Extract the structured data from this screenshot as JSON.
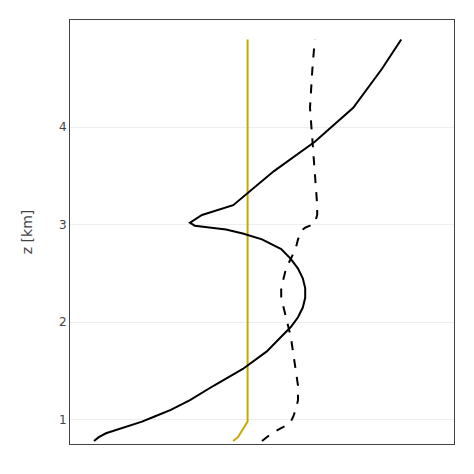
{
  "chart_data": {
    "type": "line",
    "ylabel": "z [km]",
    "xlim": [
      -0.3,
      1.3
    ],
    "ylim": [
      0.75,
      5.1
    ],
    "xticks": [],
    "yticks": [
      1,
      2,
      3,
      4
    ],
    "grid": true,
    "tick_labels": "y",
    "series": [
      {
        "color": "#c8a800",
        "line_style": "solid",
        "x": [
          0.38,
          0.4,
          0.41,
          0.42,
          0.43,
          0.44,
          0.44,
          0.44,
          0.44,
          0.44,
          0.44,
          0.44,
          0.44,
          0.44,
          0.44,
          0.44,
          0.44,
          0.44,
          0.44,
          0.44,
          0.44,
          0.44,
          0.44,
          0.44,
          0.44,
          0.44,
          0.44,
          0.44,
          0.44,
          0.44,
          0.44,
          0.44,
          0.44,
          0.44,
          0.44
        ],
        "values": [
          0.78,
          0.82,
          0.86,
          0.9,
          0.94,
          0.98,
          1.03,
          1.1,
          1.2,
          1.35,
          1.52,
          1.7,
          1.85,
          1.95,
          2.05,
          2.15,
          2.25,
          2.35,
          2.45,
          2.55,
          2.65,
          2.75,
          2.85,
          2.91,
          2.95,
          2.97,
          2.99,
          3.02,
          3.1,
          3.2,
          3.55,
          3.85,
          4.2,
          4.6,
          4.9
        ]
      },
      {
        "color": "#000000",
        "line_style": "dashed",
        "x": [
          0.5,
          0.52,
          0.54,
          0.57,
          0.6,
          0.62,
          0.63,
          0.64,
          0.65,
          0.65,
          0.64,
          0.63,
          0.62,
          0.61,
          0.6,
          0.59,
          0.58,
          0.58,
          0.59,
          0.6,
          0.62,
          0.64,
          0.65,
          0.66,
          0.67,
          0.68,
          0.7,
          0.72,
          0.73,
          0.73,
          0.72,
          0.71,
          0.7,
          0.71,
          0.72
        ],
        "values": [
          0.78,
          0.82,
          0.86,
          0.9,
          0.94,
          0.98,
          1.03,
          1.1,
          1.2,
          1.35,
          1.52,
          1.7,
          1.85,
          1.95,
          2.05,
          2.15,
          2.25,
          2.35,
          2.45,
          2.55,
          2.65,
          2.75,
          2.85,
          2.91,
          2.95,
          2.97,
          2.99,
          3.02,
          3.1,
          3.2,
          3.55,
          3.85,
          4.2,
          4.6,
          4.9
        ]
      },
      {
        "color": "#000000",
        "line_style": "solid",
        "x": [
          -0.2,
          -0.18,
          -0.15,
          -0.1,
          -0.05,
          0.0,
          0.05,
          0.12,
          0.2,
          0.3,
          0.42,
          0.52,
          0.58,
          0.62,
          0.65,
          0.67,
          0.68,
          0.68,
          0.67,
          0.65,
          0.62,
          0.58,
          0.5,
          0.42,
          0.35,
          0.28,
          0.22,
          0.2,
          0.25,
          0.38,
          0.55,
          0.72,
          0.88,
          1.0,
          1.08
        ],
        "values": [
          0.78,
          0.82,
          0.86,
          0.9,
          0.94,
          0.98,
          1.03,
          1.1,
          1.2,
          1.35,
          1.52,
          1.7,
          1.85,
          1.95,
          2.05,
          2.15,
          2.25,
          2.35,
          2.45,
          2.55,
          2.65,
          2.75,
          2.85,
          2.91,
          2.95,
          2.97,
          2.99,
          3.02,
          3.1,
          3.2,
          3.55,
          3.85,
          4.2,
          4.6,
          4.9
        ]
      }
    ]
  }
}
